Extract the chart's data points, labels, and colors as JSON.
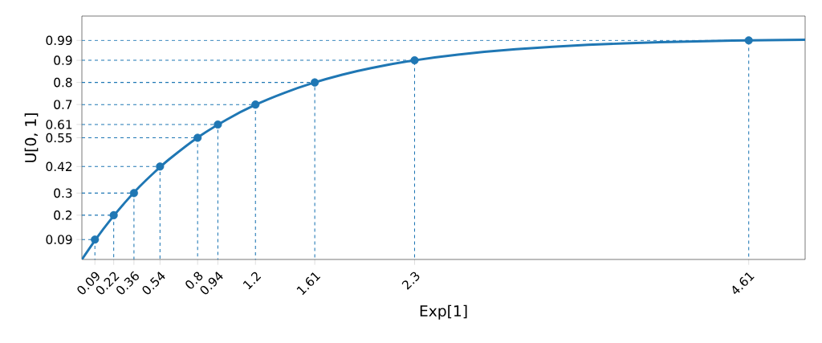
{
  "chart_data": {
    "type": "line",
    "xlabel": "Exp[1]",
    "ylabel": "U[0, 1]",
    "xlim": [
      0,
      5
    ],
    "ylim": [
      0,
      1.1
    ],
    "xticks": [
      0.09,
      0.22,
      0.36,
      0.54,
      0.8,
      0.94,
      1.2,
      1.61,
      2.3,
      4.61
    ],
    "yticks": [
      0.09,
      0.2,
      0.3,
      0.42,
      0.55,
      0.61,
      0.7,
      0.8,
      0.9,
      0.99
    ],
    "series": [
      {
        "color": "#1f77b4",
        "marker": "none",
        "x": [
          0,
          0.1,
          0.2,
          0.3,
          0.4,
          0.5,
          0.6,
          0.8,
          1.0,
          1.2,
          1.4,
          1.6,
          1.8,
          2.0,
          2.3,
          2.6,
          3.0,
          3.5,
          4.0,
          4.5,
          5.0
        ],
        "values": [
          0,
          0.095,
          0.181,
          0.259,
          0.33,
          0.393,
          0.451,
          0.551,
          0.632,
          0.699,
          0.753,
          0.798,
          0.835,
          0.865,
          0.9,
          0.926,
          0.95,
          0.97,
          0.982,
          0.989,
          0.993
        ]
      },
      {
        "color": "#1f77b4",
        "marker": "none",
        "line_style": "dashed",
        "x": [
          0,
          0.09,
          0.09,
          null,
          0,
          0.22,
          0.22,
          null,
          0,
          0.36,
          0.36,
          null,
          0,
          0.54,
          0.54,
          null,
          0,
          0.8,
          0.8,
          null,
          0,
          0.94,
          0.94,
          null,
          0,
          1.2,
          1.2,
          null,
          0,
          1.61,
          1.61,
          null,
          0,
          2.3,
          2.3,
          null,
          0,
          4.61,
          4.61
        ],
        "values": [
          0.09,
          0.09,
          0,
          null,
          0.2,
          0.2,
          0,
          null,
          0.3,
          0.3,
          0,
          null,
          0.42,
          0.42,
          0,
          null,
          0.55,
          0.55,
          0,
          null,
          0.61,
          0.61,
          0,
          null,
          0.7,
          0.7,
          0,
          null,
          0.8,
          0.8,
          0,
          null,
          0.9,
          0.9,
          0,
          null,
          0.99,
          0.99,
          0
        ]
      },
      {
        "type": "scatter",
        "color": "#1f77b4",
        "marker": "circle",
        "x": [
          0.09,
          0.22,
          0.36,
          0.54,
          0.8,
          0.94,
          1.2,
          1.61,
          2.3,
          4.61
        ],
        "values": [
          0.09,
          0.2,
          0.3,
          0.42,
          0.55,
          0.61,
          0.7,
          0.8,
          0.9,
          0.99
        ]
      }
    ]
  }
}
